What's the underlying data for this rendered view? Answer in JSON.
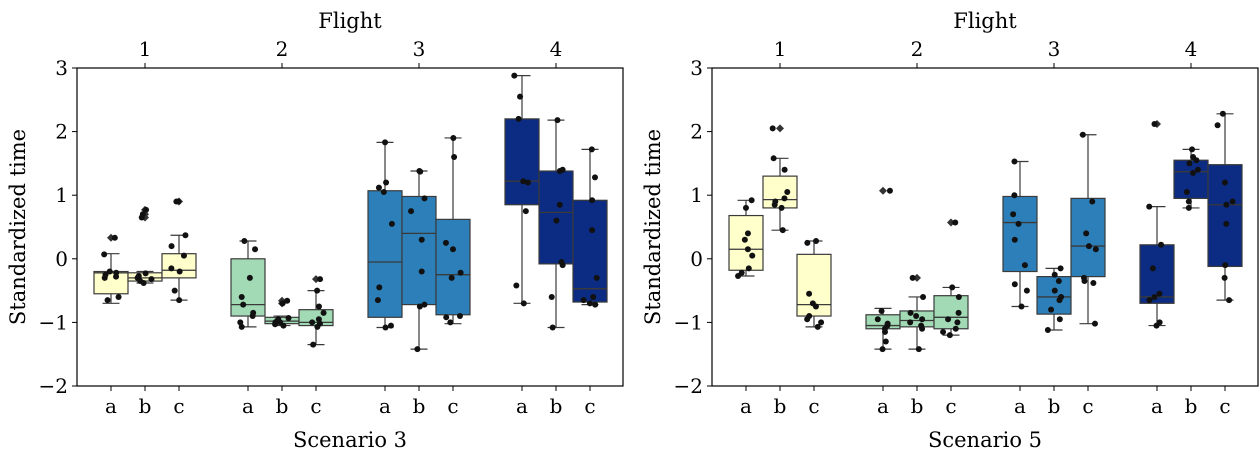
{
  "chart_data": [
    {
      "type": "box",
      "title": "Scenario 3",
      "top_axis_label": "Flight",
      "flights": [
        "1",
        "2",
        "3",
        "4"
      ],
      "categories": [
        "a",
        "b",
        "c"
      ],
      "ylabel": "Standardized time",
      "ylim": [
        -2,
        3
      ],
      "yticks": [
        "−2",
        "−1",
        "0",
        "1",
        "2",
        "3"
      ],
      "ytick_values": [
        -2,
        -1,
        0,
        1,
        2,
        3
      ],
      "colors": [
        "#ffffcc",
        "#a1dab4",
        "#2c7fb8",
        "#0c2c84"
      ],
      "boxes": [
        {
          "flight": "1",
          "cat": "a",
          "q1": -0.55,
          "median": -0.22,
          "q3": -0.2,
          "whislo": -0.7,
          "whishi": 0.08,
          "points": [
            0.33,
            0.07,
            -0.2,
            -0.22,
            -0.25,
            -0.28,
            -0.3,
            -0.6,
            -0.65
          ],
          "fliers": [
            0.33
          ]
        },
        {
          "flight": "1",
          "cat": "b",
          "q1": -0.35,
          "median": -0.3,
          "q3": -0.22,
          "whislo": -0.38,
          "whishi": -0.2,
          "points": [
            0.77,
            0.7,
            0.65,
            -0.23,
            -0.27,
            -0.3,
            -0.32,
            -0.35,
            -0.38
          ],
          "fliers": [
            0.77,
            0.7,
            0.65
          ]
        },
        {
          "flight": "1",
          "cat": "c",
          "q1": -0.3,
          "median": -0.18,
          "q3": 0.08,
          "whislo": -0.65,
          "whishi": 0.37,
          "points": [
            0.9,
            0.9,
            0.37,
            0.2,
            0.05,
            -0.15,
            -0.2,
            -0.5,
            -0.65
          ],
          "fliers": [
            0.9
          ]
        },
        {
          "flight": "2",
          "cat": "a",
          "q1": -0.9,
          "median": -0.72,
          "q3": 0.0,
          "whislo": -1.07,
          "whishi": 0.28,
          "points": [
            0.28,
            0.15,
            -0.3,
            -0.6,
            -0.72,
            -0.85,
            -0.9,
            -1.0,
            -1.07
          ],
          "fliers": []
        },
        {
          "flight": "2",
          "cat": "b",
          "q1": -1.02,
          "median": -0.98,
          "q3": -0.92,
          "whislo": -1.05,
          "whishi": -0.9,
          "points": [
            -0.66,
            -0.7,
            -0.93,
            -0.95,
            -0.98,
            -1.0,
            -1.0,
            -1.03,
            -1.05
          ],
          "fliers": [
            -0.66,
            -0.7
          ]
        },
        {
          "flight": "2",
          "cat": "c",
          "q1": -1.05,
          "median": -1.0,
          "q3": -0.8,
          "whislo": -1.35,
          "whishi": -0.5,
          "points": [
            -0.32,
            -0.5,
            -0.75,
            -0.85,
            -0.95,
            -1.0,
            -1.02,
            -1.07,
            -1.35
          ],
          "fliers": [
            -0.32
          ]
        },
        {
          "flight": "3",
          "cat": "a",
          "q1": -0.92,
          "median": -0.05,
          "q3": 1.07,
          "whislo": -1.08,
          "whishi": 1.83,
          "points": [
            1.83,
            1.2,
            1.12,
            1.05,
            0.55,
            -0.45,
            -0.65,
            -1.05,
            -1.08
          ],
          "fliers": []
        },
        {
          "flight": "3",
          "cat": "b",
          "q1": -0.72,
          "median": 0.4,
          "q3": 0.98,
          "whislo": -1.42,
          "whishi": 1.38,
          "points": [
            1.38,
            1.37,
            0.95,
            0.75,
            0.3,
            -0.2,
            -0.72,
            -0.75,
            -1.42
          ],
          "fliers": []
        },
        {
          "flight": "3",
          "cat": "c",
          "q1": -0.88,
          "median": -0.25,
          "q3": 0.62,
          "whislo": -1.02,
          "whishi": 1.9,
          "points": [
            1.9,
            1.6,
            0.25,
            0.15,
            -0.22,
            -0.3,
            -0.9,
            -0.92,
            -1.0
          ],
          "fliers": []
        },
        {
          "flight": "4",
          "cat": "a",
          "q1": 0.85,
          "median": 1.22,
          "q3": 2.2,
          "whislo": -0.7,
          "whishi": 2.88,
          "points": [
            2.88,
            2.55,
            2.2,
            1.22,
            1.2,
            0.75,
            -0.42,
            -0.7
          ],
          "fliers": []
        },
        {
          "flight": "4",
          "cat": "b",
          "q1": -0.08,
          "median": 0.73,
          "q3": 1.38,
          "whislo": -1.08,
          "whishi": 2.18,
          "points": [
            2.18,
            1.4,
            1.38,
            0.85,
            0.6,
            -0.05,
            -0.1,
            -0.6,
            -1.08
          ],
          "fliers": []
        },
        {
          "flight": "4",
          "cat": "c",
          "q1": -0.68,
          "median": -0.47,
          "q3": 0.92,
          "whislo": -0.72,
          "whishi": 1.72,
          "points": [
            1.72,
            1.28,
            0.92,
            0.45,
            -0.3,
            -0.6,
            -0.65,
            -0.7,
            -0.72
          ],
          "fliers": []
        }
      ]
    },
    {
      "type": "box",
      "title": "Scenario 5",
      "top_axis_label": "Flight",
      "flights": [
        "1",
        "2",
        "3",
        "4"
      ],
      "categories": [
        "a",
        "b",
        "c"
      ],
      "ylabel": "Standardized time",
      "ylim": [
        -2,
        3
      ],
      "yticks": [
        "−2",
        "−1",
        "0",
        "1",
        "2",
        "3"
      ],
      "ytick_values": [
        -2,
        -1,
        0,
        1,
        2,
        3
      ],
      "colors": [
        "#ffffcc",
        "#a1dab4",
        "#2c7fb8",
        "#0c2c84"
      ],
      "boxes": [
        {
          "flight": "1",
          "cat": "a",
          "q1": -0.18,
          "median": 0.15,
          "q3": 0.68,
          "whislo": -0.27,
          "whishi": 0.92,
          "points": [
            0.92,
            0.8,
            0.4,
            0.3,
            0.15,
            0.05,
            -0.15,
            -0.22,
            -0.27
          ],
          "fliers": []
        },
        {
          "flight": "1",
          "cat": "b",
          "q1": 0.8,
          "median": 0.93,
          "q3": 1.3,
          "whislo": 0.45,
          "whishi": 1.58,
          "points": [
            2.05,
            1.58,
            1.4,
            1.05,
            0.95,
            0.9,
            0.85,
            0.8,
            0.45
          ],
          "fliers": [
            2.05
          ]
        },
        {
          "flight": "1",
          "cat": "c",
          "q1": -0.9,
          "median": -0.72,
          "q3": 0.07,
          "whislo": -1.07,
          "whishi": 0.28,
          "points": [
            0.28,
            0.25,
            -0.55,
            -0.7,
            -0.75,
            -0.9,
            -0.95,
            -1.0,
            -1.07
          ],
          "fliers": []
        },
        {
          "flight": "2",
          "cat": "a",
          "q1": -1.1,
          "median": -1.05,
          "q3": -0.88,
          "whislo": -1.42,
          "whishi": -0.78,
          "points": [
            1.07,
            -0.82,
            -0.95,
            -1.02,
            -1.05,
            -1.1,
            -1.15,
            -1.3,
            -1.42
          ],
          "fliers": [
            1.07
          ]
        },
        {
          "flight": "2",
          "cat": "b",
          "q1": -1.07,
          "median": -0.97,
          "q3": -0.82,
          "whislo": -1.42,
          "whishi": -0.6,
          "points": [
            -0.3,
            -0.6,
            -0.85,
            -0.9,
            -0.95,
            -1.0,
            -1.05,
            -1.1,
            -1.42
          ],
          "fliers": [
            -0.3
          ]
        },
        {
          "flight": "2",
          "cat": "c",
          "q1": -1.1,
          "median": -0.92,
          "q3": -0.58,
          "whislo": -1.2,
          "whishi": -0.45,
          "points": [
            0.57,
            -0.45,
            -0.6,
            -0.85,
            -0.95,
            -1.0,
            -1.1,
            -1.15,
            -1.2
          ],
          "fliers": [
            0.57
          ]
        },
        {
          "flight": "3",
          "cat": "a",
          "q1": -0.2,
          "median": 0.57,
          "q3": 0.98,
          "whislo": -0.75,
          "whishi": 1.53,
          "points": [
            1.53,
            1.0,
            0.7,
            0.55,
            0.3,
            -0.1,
            -0.4,
            -0.5,
            -0.75
          ],
          "fliers": []
        },
        {
          "flight": "3",
          "cat": "b",
          "q1": -0.87,
          "median": -0.6,
          "q3": -0.28,
          "whislo": -1.12,
          "whishi": -0.15,
          "points": [
            -0.15,
            -0.25,
            -0.35,
            -0.5,
            -0.6,
            -0.65,
            -0.8,
            -0.95,
            -1.12
          ],
          "fliers": []
        },
        {
          "flight": "3",
          "cat": "c",
          "q1": -0.28,
          "median": 0.2,
          "q3": 0.95,
          "whislo": -1.02,
          "whishi": 1.95,
          "points": [
            1.95,
            0.9,
            0.4,
            0.2,
            0.15,
            -0.3,
            -0.35,
            -0.38,
            -1.02
          ],
          "fliers": []
        },
        {
          "flight": "4",
          "cat": "a",
          "q1": -0.7,
          "median": -0.6,
          "q3": 0.22,
          "whislo": -1.05,
          "whishi": 0.82,
          "points": [
            2.12,
            0.82,
            0.22,
            -0.15,
            -0.55,
            -0.6,
            -0.65,
            -1.0,
            -1.05
          ],
          "fliers": [
            2.12
          ]
        },
        {
          "flight": "4",
          "cat": "b",
          "q1": 0.95,
          "median": 1.37,
          "q3": 1.55,
          "whislo": 0.8,
          "whishi": 1.72,
          "points": [
            1.72,
            1.6,
            1.55,
            1.5,
            1.4,
            1.35,
            1.05,
            0.9,
            0.8
          ],
          "fliers": []
        },
        {
          "flight": "4",
          "cat": "c",
          "q1": -0.12,
          "median": 0.85,
          "q3": 1.48,
          "whislo": -0.65,
          "whishi": 2.28,
          "points": [
            2.28,
            2.1,
            1.2,
            0.9,
            0.85,
            0.55,
            -0.1,
            -0.3,
            -0.65
          ],
          "fliers": []
        }
      ]
    }
  ]
}
